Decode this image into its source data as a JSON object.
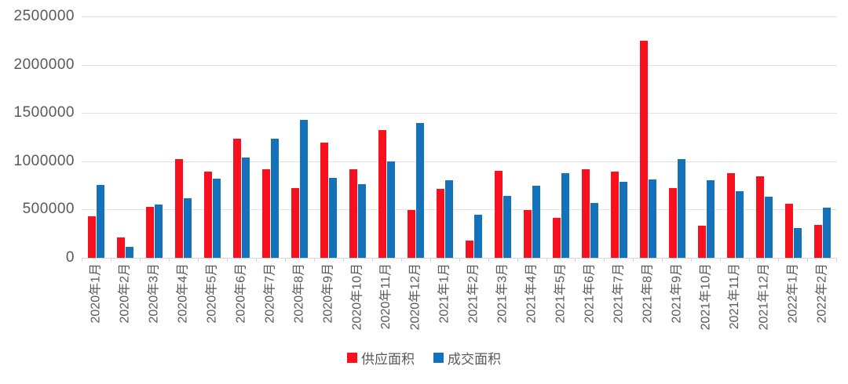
{
  "chart_data": {
    "type": "bar",
    "title": "",
    "xlabel": "",
    "ylabel": "",
    "ylim": [
      0,
      2500000
    ],
    "ytick_interval": 500000,
    "yticks": [
      "2500000",
      "2000000",
      "1500000",
      "1000000",
      "500000",
      "0"
    ],
    "grid": true,
    "legend_position": "bottom",
    "categories": [
      "2020年1月",
      "2020年2月",
      "2020年3月",
      "2020年4月",
      "2020年5月",
      "2020年6月",
      "2020年7月",
      "2020年8月",
      "2020年9月",
      "2020年10月",
      "2020年11月",
      "2020年12月",
      "2021年1月",
      "2021年2月",
      "2021年3月",
      "2021年4月",
      "2021年5月",
      "2021年6月",
      "2021年7月",
      "2021年8月",
      "2021年9月",
      "2021年10月",
      "2021年11月",
      "2021年12月",
      "2022年1月",
      "2022年2月"
    ],
    "series": [
      {
        "name": "供应面积",
        "color": "#f8101e",
        "values": [
          430000,
          215000,
          525000,
          1025000,
          890000,
          1235000,
          915000,
          720000,
          1195000,
          920000,
          1320000,
          495000,
          715000,
          175000,
          900000,
          495000,
          415000,
          920000,
          890000,
          2250000,
          720000,
          335000,
          880000,
          845000,
          560000,
          345000
        ]
      },
      {
        "name": "成交面积",
        "color": "#1472bb",
        "values": [
          755000,
          110000,
          555000,
          615000,
          820000,
          1040000,
          1235000,
          1430000,
          825000,
          760000,
          995000,
          1400000,
          800000,
          445000,
          640000,
          745000,
          880000,
          565000,
          790000,
          810000,
          1025000,
          800000,
          690000,
          635000,
          305000,
          520000
        ]
      }
    ]
  },
  "colors": {
    "gridline": "#e2e2e2",
    "axis_line": "#d6d6d6",
    "text": "#595959",
    "background": "#ffffff"
  }
}
